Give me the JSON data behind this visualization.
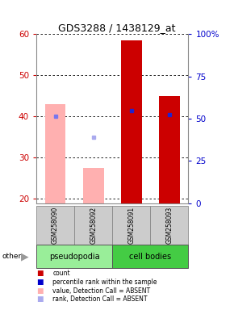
{
  "title": "GDS3288 / 1438129_at",
  "samples": [
    "GSM258090",
    "GSM258092",
    "GSM258091",
    "GSM258093"
  ],
  "bar_values": [
    43,
    27.5,
    58.5,
    45
  ],
  "bar_colors": [
    "#ffb0b0",
    "#ffb0b0",
    "#cc0000",
    "#cc0000"
  ],
  "dot_values": [
    40,
    35,
    41.5,
    40.5
  ],
  "dot_colors": [
    "#7777ee",
    "#aaaaee",
    "#2222cc",
    "#2222cc"
  ],
  "dot_absent": [
    false,
    true,
    false,
    false
  ],
  "ylim_left": [
    19,
    60
  ],
  "ylim_right": [
    0,
    100
  ],
  "yticks_left": [
    20,
    30,
    40,
    50,
    60
  ],
  "yticks_right": [
    0,
    25,
    50,
    75,
    100
  ],
  "yticklabels_right": [
    "0",
    "25",
    "50",
    "75",
    "100%"
  ],
  "group_colors": {
    "pseudopodia": "#99ee99",
    "cell bodies": "#44cc44"
  },
  "bar_width": 0.55,
  "left_tick_color": "#cc0000",
  "right_tick_color": "#0000cc",
  "legend_items": [
    {
      "label": "count",
      "color": "#cc0000"
    },
    {
      "label": "percentile rank within the sample",
      "color": "#0000cc"
    },
    {
      "label": "value, Detection Call = ABSENT",
      "color": "#ffb0b0"
    },
    {
      "label": "rank, Detection Call = ABSENT",
      "color": "#aaaaee"
    }
  ]
}
